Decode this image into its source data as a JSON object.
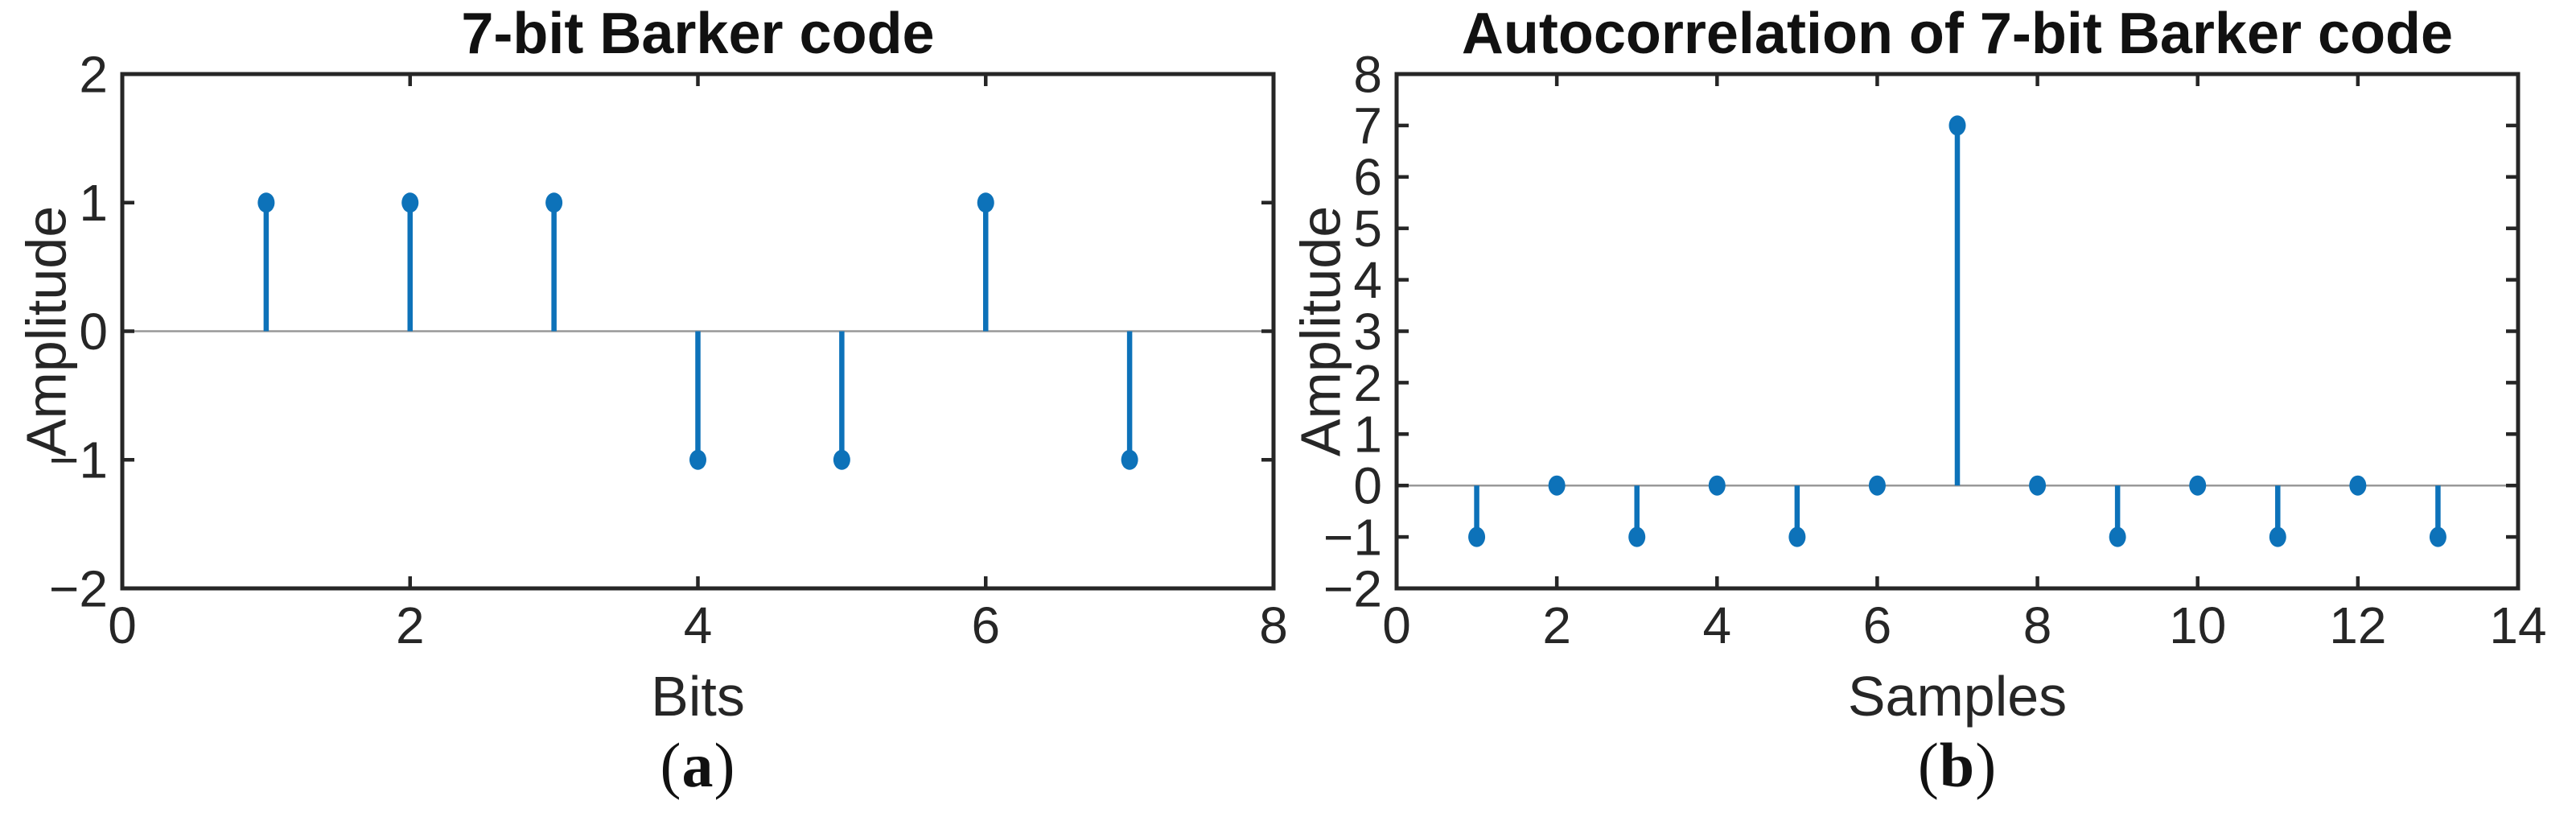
{
  "figure": {
    "panels": [
      {
        "caption": {
          "open": "(",
          "letter": "a",
          "close": ")"
        }
      },
      {
        "caption": {
          "open": "(",
          "letter": "b",
          "close": ")"
        }
      }
    ]
  },
  "chart_data": [
    {
      "type": "stem",
      "title": "7-bit Barker code",
      "xlabel": "Bits",
      "ylabel": "Amplitude",
      "x": [
        1,
        2,
        3,
        4,
        5,
        6,
        7
      ],
      "values": [
        1,
        1,
        1,
        -1,
        -1,
        1,
        -1
      ],
      "xlim": [
        0,
        8
      ],
      "ylim": [
        -2,
        2
      ],
      "xticks": [
        0,
        2,
        4,
        6,
        8
      ],
      "yticks": [
        -2,
        -1,
        0,
        1,
        2
      ],
      "baseline": 0,
      "grid": false,
      "box": true,
      "legend": "none",
      "marker": "filled-circle",
      "stem_color": "#0d72b9",
      "baseline_color": "#999999",
      "axis_color": "#262626"
    },
    {
      "type": "stem",
      "title": "Autocorrelation of 7-bit Barker code",
      "xlabel": "Samples",
      "ylabel": "Amplitude",
      "x": [
        1,
        2,
        3,
        4,
        5,
        6,
        7,
        8,
        9,
        10,
        11,
        12,
        13
      ],
      "values": [
        -1,
        0,
        -1,
        0,
        -1,
        0,
        7,
        0,
        -1,
        0,
        -1,
        0,
        -1
      ],
      "xlim": [
        0,
        14
      ],
      "ylim": [
        -2,
        8
      ],
      "xticks": [
        0,
        2,
        4,
        6,
        8,
        10,
        12,
        14
      ],
      "yticks": [
        -2,
        -1,
        0,
        1,
        2,
        3,
        4,
        5,
        6,
        7,
        8
      ],
      "baseline": 0,
      "grid": false,
      "box": true,
      "legend": "none",
      "marker": "filled-circle",
      "stem_color": "#0d72b9",
      "baseline_color": "#999999",
      "axis_color": "#262626"
    }
  ]
}
